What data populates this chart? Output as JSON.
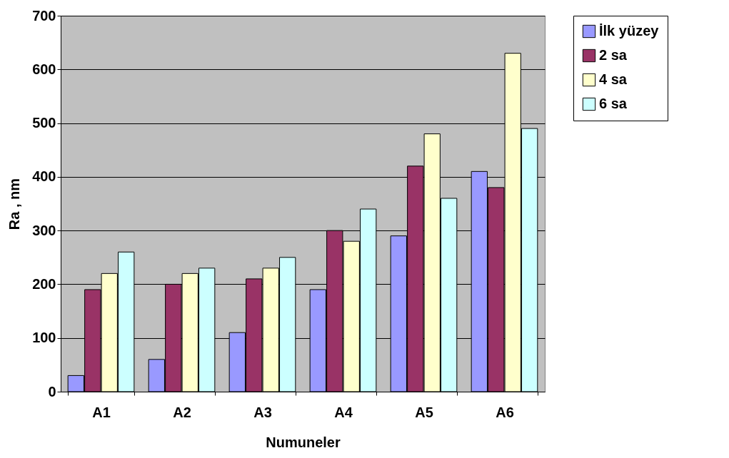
{
  "chart_data": {
    "type": "bar",
    "xlabel": "Numuneler",
    "ylabel": "Ra , nm",
    "categories": [
      "A1",
      "A2",
      "A3",
      "A4",
      "A5",
      "A6"
    ],
    "series": [
      {
        "name": "İlk yüzey",
        "color": "#9999ff",
        "values": [
          30,
          60,
          110,
          190,
          290,
          410
        ]
      },
      {
        "name": "2 sa",
        "color": "#993366",
        "values": [
          190,
          200,
          210,
          300,
          420,
          380
        ]
      },
      {
        "name": "4 sa",
        "color": "#ffffcc",
        "values": [
          220,
          220,
          230,
          280,
          480,
          630
        ]
      },
      {
        "name": "6 sa",
        "color": "#ccffff",
        "values": [
          260,
          230,
          250,
          340,
          360,
          490
        ]
      }
    ],
    "ylim": [
      0,
      700
    ],
    "yticks": [
      0,
      100,
      200,
      300,
      400,
      500,
      600,
      700
    ],
    "grid": "y",
    "legend": "right"
  }
}
